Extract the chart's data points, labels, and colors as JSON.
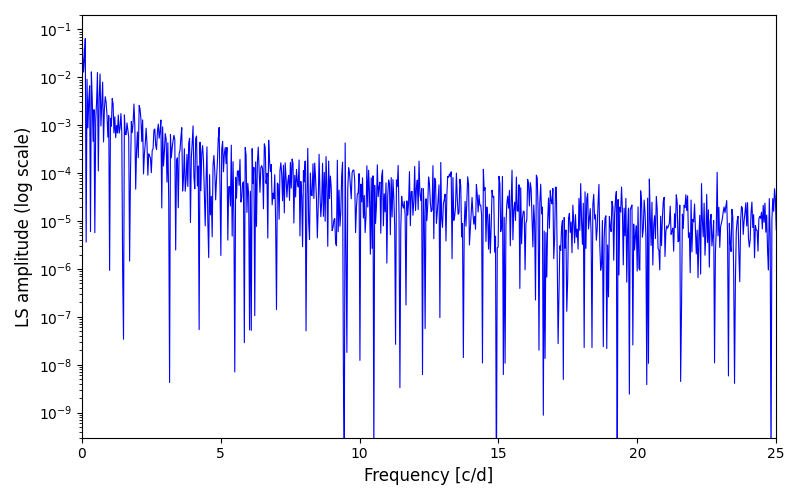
{
  "xlabel": "Frequency [c/d]",
  "ylabel": "LS amplitude (log scale)",
  "line_color": "#0000FF",
  "xlim": [
    0,
    25
  ],
  "ylim": [
    3e-10,
    0.2
  ],
  "freq_max": 25.0,
  "n_points": 800,
  "seed": 7,
  "background_color": "#ffffff",
  "figsize": [
    8.0,
    5.0
  ],
  "dpi": 100,
  "line_width": 0.8
}
